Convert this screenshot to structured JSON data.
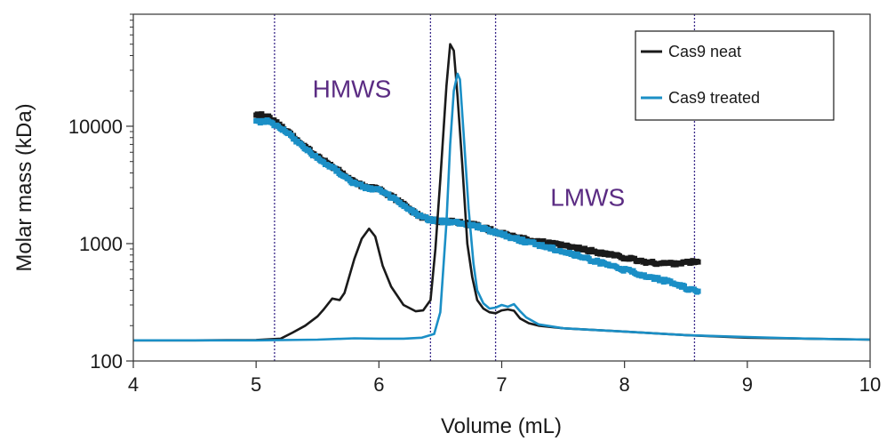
{
  "chart_data": {
    "type": "line",
    "xlabel": "Volume (mL)",
    "ylabel": "Molar mass (kDa)",
    "xlim": [
      4,
      10
    ],
    "ylim": [
      100,
      90000
    ],
    "yscale": "log",
    "xticks": [
      "4",
      "5",
      "6",
      "7",
      "8",
      "9",
      "10"
    ],
    "yticks": [
      "100",
      "1000",
      "10000"
    ],
    "region_lines_x": [
      5.15,
      6.42,
      6.95,
      8.57
    ],
    "annotations": [
      {
        "text": "HMWS",
        "x": 5.78,
        "y": 21000
      },
      {
        "text": "LMWS",
        "x": 7.7,
        "y": 2500
      }
    ],
    "legend_position": "top-right",
    "colors": {
      "neat": "#1a1a1a",
      "treated": "#1b8fc6",
      "region": "#3b2a8a",
      "annotation": "#5b2c83"
    },
    "series": [
      {
        "name": "Cas9 neat",
        "kind": "trace",
        "x": [
          4.0,
          4.5,
          5.0,
          5.2,
          5.3,
          5.4,
          5.5,
          5.55,
          5.62,
          5.68,
          5.72,
          5.8,
          5.86,
          5.92,
          5.97,
          6.03,
          6.1,
          6.2,
          6.3,
          6.36,
          6.42,
          6.46,
          6.5,
          6.55,
          6.58,
          6.61,
          6.64,
          6.68,
          6.72,
          6.76,
          6.8,
          6.85,
          6.9,
          6.95,
          7.0,
          7.05,
          7.1,
          7.15,
          7.22,
          7.3,
          7.5,
          8.0,
          8.5,
          9.0,
          9.5,
          10.0
        ],
        "y": [
          150,
          150,
          151,
          155,
          175,
          200,
          240,
          275,
          340,
          330,
          380,
          740,
          1100,
          1340,
          1150,
          650,
          430,
          300,
          265,
          270,
          330,
          900,
          3500,
          22000,
          50000,
          44000,
          18000,
          4500,
          1000,
          520,
          330,
          280,
          260,
          255,
          270,
          275,
          268,
          230,
          210,
          200,
          190,
          178,
          166,
          158,
          155,
          152
        ]
      },
      {
        "name": "Cas9 treated",
        "kind": "trace",
        "x": [
          4.0,
          4.5,
          5.0,
          5.5,
          5.8,
          6.0,
          6.2,
          6.35,
          6.45,
          6.5,
          6.55,
          6.58,
          6.61,
          6.64,
          6.66,
          6.69,
          6.73,
          6.77,
          6.8,
          6.85,
          6.9,
          6.95,
          7.0,
          7.05,
          7.1,
          7.15,
          7.2,
          7.3,
          7.5,
          8.0,
          8.5,
          9.0,
          9.5,
          10.0
        ],
        "y": [
          150,
          150,
          150,
          152,
          156,
          155,
          155,
          158,
          170,
          260,
          1500,
          7000,
          20000,
          28000,
          25000,
          8500,
          2000,
          680,
          400,
          310,
          280,
          285,
          300,
          290,
          305,
          265,
          235,
          205,
          190,
          178,
          166,
          160,
          155,
          152
        ]
      },
      {
        "name": "Cas9 neat",
        "kind": "molar-mass",
        "x": [
          5.0,
          5.1,
          5.2,
          5.3,
          5.4,
          5.5,
          5.6,
          5.7,
          5.8,
          5.9,
          6.0,
          6.1,
          6.2,
          6.3,
          6.4,
          6.5,
          6.6,
          6.7,
          6.8,
          6.9,
          7.0,
          7.1,
          7.2,
          7.3,
          7.4,
          7.5,
          7.6,
          7.7,
          7.8,
          7.9,
          8.0,
          8.1,
          8.2,
          8.3,
          8.4,
          8.5,
          8.6
        ],
        "y": [
          12800,
          12000,
          10000,
          8200,
          6700,
          5500,
          4700,
          4000,
          3300,
          3050,
          2900,
          2550,
          2150,
          1800,
          1600,
          1560,
          1540,
          1500,
          1420,
          1320,
          1220,
          1140,
          1080,
          1040,
          1000,
          960,
          920,
          880,
          840,
          800,
          760,
          720,
          690,
          680,
          680,
          690,
          700
        ]
      },
      {
        "name": "Cas9 treated",
        "kind": "molar-mass",
        "x": [
          5.0,
          5.1,
          5.2,
          5.3,
          5.4,
          5.5,
          5.6,
          5.7,
          5.8,
          5.9,
          6.0,
          6.1,
          6.2,
          6.3,
          6.4,
          6.5,
          6.6,
          6.7,
          6.8,
          6.9,
          7.0,
          7.1,
          7.2,
          7.3,
          7.4,
          7.5,
          7.6,
          7.7,
          7.8,
          7.9,
          8.0,
          8.1,
          8.2,
          8.3,
          8.4,
          8.5,
          8.6
        ],
        "y": [
          11000,
          11000,
          9800,
          8000,
          6500,
          5300,
          4600,
          3900,
          3250,
          3000,
          2850,
          2500,
          2100,
          1800,
          1620,
          1550,
          1520,
          1480,
          1400,
          1300,
          1200,
          1110,
          1040,
          980,
          920,
          860,
          800,
          740,
          690,
          640,
          600,
          560,
          520,
          490,
          460,
          420,
          390
        ]
      }
    ]
  }
}
